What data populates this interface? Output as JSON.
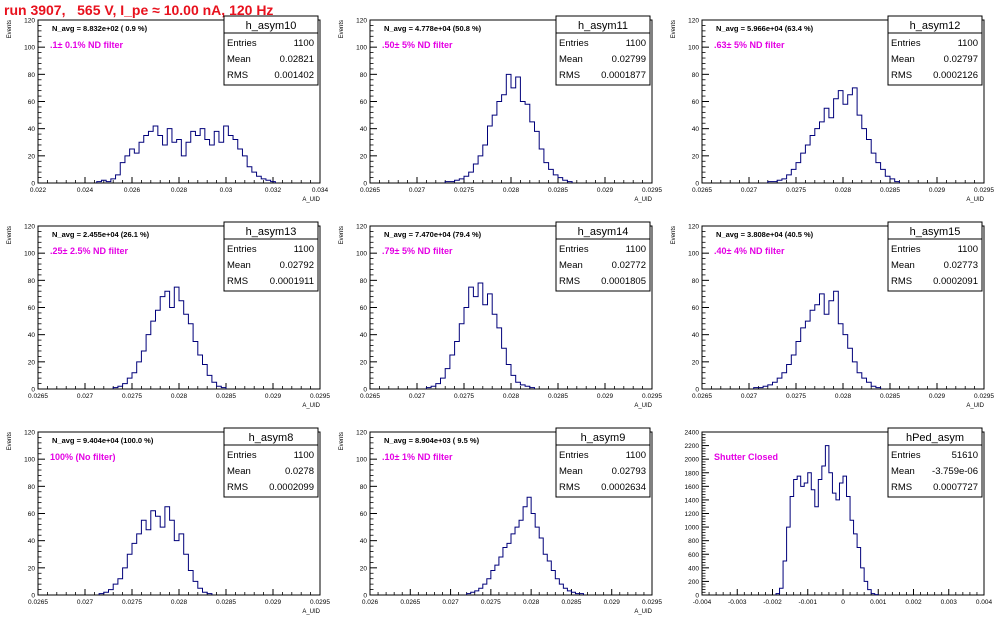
{
  "run_title": "run 3907,   565 V, I_pe ≈ 10.00 nA, 120 Hz",
  "colors": {
    "title": "#e8111d",
    "filter_label": "#e400e4",
    "histogram": "#00007a",
    "axis": "#000000"
  },
  "chart_data": [
    {
      "type": "histogram",
      "name": "h_asym10",
      "nav_label": "N_avg = 8.832e+02 ( 0.9 %)",
      "filter_label": ".1± 0.1% ND filter",
      "stats": {
        "entries": "1100",
        "mean": "0.02821",
        "rms": "0.001402"
      },
      "stats_labels": {
        "entries": "Entries",
        "mean": "Mean",
        "rms": "RMS"
      },
      "xlabel": "A_UID",
      "ylabel": "Events",
      "xlim": [
        0.022,
        0.034
      ],
      "ylim": [
        0,
        120
      ],
      "xticks": [
        "0.022",
        "0.024",
        "0.026",
        "0.028",
        "0.03",
        "0.032",
        "0.034"
      ],
      "yticks": [
        "0",
        "20",
        "40",
        "60",
        "80",
        "100",
        "120"
      ],
      "bins": {
        "start": 0.0245,
        "width": 0.0002,
        "counts": [
          1,
          2,
          1,
          3,
          6,
          15,
          20,
          25,
          22,
          30,
          35,
          38,
          42,
          35,
          28,
          40,
          30,
          32,
          20,
          30,
          38,
          35,
          40,
          32,
          28,
          38,
          30,
          42,
          35,
          32,
          25,
          20,
          12,
          8,
          5,
          3,
          2,
          1
        ]
      }
    },
    {
      "type": "histogram",
      "name": "h_asym11",
      "nav_label": "N_avg = 4.778e+04 (50.8 %)",
      "filter_label": ".50± 5% ND filter",
      "stats": {
        "entries": "1100",
        "mean": "0.02799",
        "rms": "0.0001877"
      },
      "stats_labels": {
        "entries": "Entries",
        "mean": "Mean",
        "rms": "RMS"
      },
      "xlabel": "A_UID",
      "ylabel": "Events",
      "xlim": [
        0.0265,
        0.0295
      ],
      "ylim": [
        0,
        120
      ],
      "xticks": [
        "0.0265",
        "0.027",
        "0.0275",
        "0.028",
        "0.0285",
        "0.029",
        "0.0295"
      ],
      "yticks": [
        "0",
        "20",
        "40",
        "60",
        "80",
        "100",
        "120"
      ],
      "bins": {
        "start": 0.0273,
        "width": 5e-05,
        "counts": [
          1,
          1,
          2,
          3,
          5,
          8,
          14,
          20,
          28,
          42,
          50,
          60,
          65,
          80,
          70,
          78,
          60,
          58,
          45,
          38,
          25,
          15,
          10,
          6,
          4,
          2,
          1
        ]
      }
    },
    {
      "type": "histogram",
      "name": "h_asym12",
      "nav_label": "N_avg = 5.966e+04 (63.4 %)",
      "filter_label": ".63± 5% ND filter",
      "stats": {
        "entries": "1100",
        "mean": "0.02797",
        "rms": "0.0002126"
      },
      "stats_labels": {
        "entries": "Entries",
        "mean": "Mean",
        "rms": "RMS"
      },
      "xlabel": "A_UID",
      "ylabel": "Events",
      "xlim": [
        0.0265,
        0.0295
      ],
      "ylim": [
        0,
        120
      ],
      "xticks": [
        "0.0265",
        "0.027",
        "0.0275",
        "0.028",
        "0.0285",
        "0.029",
        "0.0295"
      ],
      "yticks": [
        "0",
        "20",
        "40",
        "60",
        "80",
        "100",
        "120"
      ],
      "bins": {
        "start": 0.0272,
        "width": 5e-05,
        "counts": [
          1,
          1,
          2,
          3,
          6,
          10,
          15,
          22,
          28,
          35,
          40,
          45,
          55,
          48,
          62,
          68,
          58,
          65,
          70,
          50,
          40,
          32,
          22,
          15,
          10,
          5,
          3,
          1
        ]
      }
    },
    {
      "type": "histogram",
      "name": "h_asym13",
      "nav_label": "N_avg = 2.455e+04 (26.1 %)",
      "filter_label": ".25± 2.5% ND filter",
      "stats": {
        "entries": "1100",
        "mean": "0.02792",
        "rms": "0.0001911"
      },
      "stats_labels": {
        "entries": "Entries",
        "mean": "Mean",
        "rms": "RMS"
      },
      "xlabel": "A_UID",
      "ylabel": "Events",
      "xlim": [
        0.0265,
        0.0295
      ],
      "ylim": [
        0,
        120
      ],
      "xticks": [
        "0.0265",
        "0.027",
        "0.0275",
        "0.028",
        "0.0285",
        "0.029",
        "0.0295"
      ],
      "yticks": [
        "0",
        "20",
        "40",
        "60",
        "80",
        "100",
        "120"
      ],
      "bins": {
        "start": 0.0273,
        "width": 5e-05,
        "counts": [
          1,
          2,
          4,
          8,
          12,
          20,
          28,
          40,
          50,
          58,
          68,
          72,
          60,
          75,
          65,
          55,
          48,
          35,
          25,
          18,
          10,
          5,
          2,
          1
        ]
      }
    },
    {
      "type": "histogram",
      "name": "h_asym14",
      "nav_label": "N_avg = 7.470e+04 (79.4 %)",
      "filter_label": ".79± 5% ND filter",
      "stats": {
        "entries": "1100",
        "mean": "0.02772",
        "rms": "0.0001805"
      },
      "stats_labels": {
        "entries": "Entries",
        "mean": "Mean",
        "rms": "RMS"
      },
      "xlabel": "A_UID",
      "ylabel": "Events",
      "xlim": [
        0.0265,
        0.0295
      ],
      "ylim": [
        0,
        120
      ],
      "xticks": [
        "0.0265",
        "0.027",
        "0.0275",
        "0.028",
        "0.0285",
        "0.029",
        "0.0295"
      ],
      "yticks": [
        "0",
        "20",
        "40",
        "60",
        "80",
        "100",
        "120"
      ],
      "bins": {
        "start": 0.0271,
        "width": 5e-05,
        "counts": [
          1,
          2,
          4,
          8,
          15,
          25,
          35,
          48,
          60,
          75,
          68,
          78,
          62,
          70,
          55,
          45,
          30,
          18,
          10,
          5,
          3,
          2,
          1
        ]
      }
    },
    {
      "type": "histogram",
      "name": "h_asym15",
      "nav_label": "N_avg = 3.808e+04 (40.5 %)",
      "filter_label": ".40± 4% ND filter",
      "stats": {
        "entries": "1100",
        "mean": "0.02773",
        "rms": "0.0002091"
      },
      "stats_labels": {
        "entries": "Entries",
        "mean": "Mean",
        "rms": "RMS"
      },
      "xlabel": "A_UID",
      "ylabel": "Events",
      "xlim": [
        0.0265,
        0.0295
      ],
      "ylim": [
        0,
        120
      ],
      "xticks": [
        "0.0265",
        "0.027",
        "0.0275",
        "0.028",
        "0.0285",
        "0.029",
        "0.0295"
      ],
      "yticks": [
        "0",
        "20",
        "40",
        "60",
        "80",
        "100",
        "120"
      ],
      "bins": {
        "start": 0.02705,
        "width": 5e-05,
        "counts": [
          1,
          1,
          2,
          3,
          5,
          8,
          12,
          18,
          25,
          35,
          45,
          50,
          58,
          62,
          70,
          55,
          65,
          72,
          48,
          40,
          30,
          20,
          12,
          8,
          5,
          2,
          1
        ]
      }
    },
    {
      "type": "histogram",
      "name": "h_asym8",
      "nav_label": "N_avg = 9.404e+04 (100.0 %)",
      "filter_label": "100% (No filter)",
      "stats": {
        "entries": "1100",
        "mean": "0.0278",
        "rms": "0.0002099"
      },
      "stats_labels": {
        "entries": "Entries",
        "mean": "Mean",
        "rms": "RMS"
      },
      "xlabel": "A_UID",
      "ylabel": "Events",
      "xlim": [
        0.0265,
        0.0295
      ],
      "ylim": [
        0,
        120
      ],
      "xticks": [
        "0.0265",
        "0.027",
        "0.0275",
        "0.028",
        "0.0285",
        "0.029",
        "0.0295"
      ],
      "yticks": [
        "0",
        "20",
        "40",
        "60",
        "80",
        "100",
        "120"
      ],
      "bins": {
        "start": 0.02715,
        "width": 5e-05,
        "counts": [
          1,
          2,
          4,
          8,
          12,
          20,
          30,
          38,
          45,
          55,
          48,
          62,
          58,
          50,
          65,
          55,
          40,
          45,
          30,
          18,
          10,
          5,
          2,
          1
        ]
      }
    },
    {
      "type": "histogram",
      "name": "h_asym9",
      "nav_label": "N_avg = 8.904e+03 ( 9.5 %)",
      "filter_label": ".10± 1% ND filter",
      "stats": {
        "entries": "1100",
        "mean": "0.02793",
        "rms": "0.0002634"
      },
      "stats_labels": {
        "entries": "Entries",
        "mean": "Mean",
        "rms": "RMS"
      },
      "xlabel": "A_UID",
      "ylabel": "Events",
      "xlim": [
        0.026,
        0.0295
      ],
      "ylim": [
        0,
        120
      ],
      "xticks": [
        "0.026",
        "0.0265",
        "0.027",
        "0.0275",
        "0.028",
        "0.0285",
        "0.029",
        "0.0295"
      ],
      "yticks": [
        "0",
        "20",
        "40",
        "60",
        "80",
        "100",
        "120"
      ],
      "bins": {
        "start": 0.0272,
        "width": 5e-05,
        "counts": [
          1,
          2,
          3,
          5,
          8,
          12,
          18,
          22,
          28,
          35,
          38,
          45,
          50,
          55,
          65,
          72,
          60,
          50,
          42,
          30,
          25,
          18,
          12,
          8,
          5,
          3,
          2,
          1,
          1
        ]
      }
    },
    {
      "type": "histogram",
      "name": "hPed_asym",
      "nav_label": "",
      "filter_label": "Shutter Closed",
      "stats": {
        "entries": "51610",
        "mean": "-3.759e-06",
        "rms": "0.0007727"
      },
      "stats_labels": {
        "entries": "Entries",
        "mean": "Mean",
        "rms": "RMS"
      },
      "xlabel": "",
      "ylabel": "",
      "xlim": [
        -0.004,
        0.004
      ],
      "ylim": [
        0,
        2400
      ],
      "xticks": [
        "-0.004",
        "-0.003",
        "-0.002",
        "-0.001",
        "0",
        "0.001",
        "0.002",
        "0.003",
        "0.004"
      ],
      "yticks": [
        "0",
        "200",
        "400",
        "600",
        "800",
        "1000",
        "1200",
        "1400",
        "1600",
        "1800",
        "2000",
        "2200",
        "2400"
      ],
      "bins": {
        "start": -0.0019,
        "width": 0.0001,
        "counts": [
          20,
          100,
          500,
          1000,
          1450,
          1700,
          1750,
          1600,
          1650,
          1800,
          1550,
          1300,
          1700,
          1900,
          2200,
          1800,
          1500,
          1400,
          1650,
          1750,
          1450,
          1100,
          900,
          700,
          400,
          200,
          80,
          20,
          5
        ]
      }
    }
  ]
}
